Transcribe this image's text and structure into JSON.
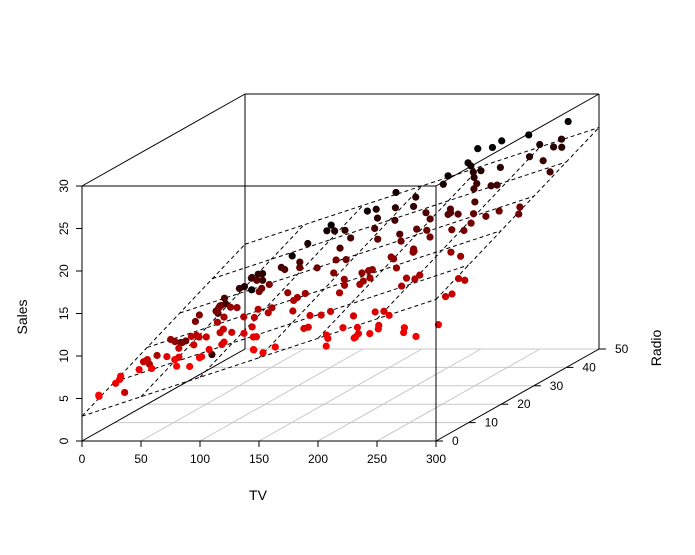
{
  "chart_data": {
    "type": "scatter3d",
    "title": "",
    "xlabel": "TV",
    "ylabel": "Radio",
    "zlabel": "Sales",
    "xlim": [
      0,
      300
    ],
    "ylim": [
      0,
      50
    ],
    "zlim": [
      0,
      30
    ],
    "x_ticks": [
      "0",
      "50",
      "100",
      "150",
      "200",
      "250",
      "300"
    ],
    "y_ticks": [
      "0",
      "10",
      "20",
      "30",
      "40",
      "50"
    ],
    "z_ticks": [
      "0",
      "5",
      "10",
      "15",
      "20",
      "25",
      "30"
    ],
    "grid": "floor",
    "regression_plane": {
      "intercept": 2.92,
      "tv_coef": 0.0458,
      "radio_coef": 0.188,
      "style": "dashed"
    },
    "color_scale": {
      "low_radio": "#ff0000",
      "high_radio": "#000000"
    },
    "points": [
      [
        230.1,
        37.8,
        22.1
      ],
      [
        44.5,
        39.3,
        10.4
      ],
      [
        17.2,
        45.9,
        9.3
      ],
      [
        151.5,
        41.3,
        18.5
      ],
      [
        180.8,
        10.8,
        12.9
      ],
      [
        8.7,
        48.9,
        7.2
      ],
      [
        57.5,
        32.8,
        11.8
      ],
      [
        120.2,
        19.6,
        13.2
      ],
      [
        8.6,
        2.1,
        4.8
      ],
      [
        199.8,
        2.6,
        10.6
      ],
      [
        66.1,
        5.8,
        8.6
      ],
      [
        214.7,
        24.0,
        17.4
      ],
      [
        23.8,
        35.1,
        9.2
      ],
      [
        97.5,
        7.6,
        9.7
      ],
      [
        204.1,
        32.9,
        19.0
      ],
      [
        195.4,
        47.7,
        22.4
      ],
      [
        67.8,
        36.6,
        12.5
      ],
      [
        281.4,
        39.6,
        24.4
      ],
      [
        69.2,
        20.5,
        11.3
      ],
      [
        147.3,
        23.9,
        14.6
      ],
      [
        218.4,
        27.7,
        18.0
      ],
      [
        237.4,
        5.1,
        12.5
      ],
      [
        13.2,
        15.9,
        5.6
      ],
      [
        228.3,
        16.9,
        15.5
      ],
      [
        62.3,
        12.6,
        9.7
      ],
      [
        262.9,
        3.5,
        12.0
      ],
      [
        142.9,
        29.3,
        15.0
      ],
      [
        240.1,
        16.7,
        15.9
      ],
      [
        248.8,
        27.1,
        18.9
      ],
      [
        70.6,
        16.0,
        10.5
      ],
      [
        292.9,
        28.3,
        21.4
      ],
      [
        112.9,
        17.4,
        11.9
      ],
      [
        97.2,
        1.5,
        9.6
      ],
      [
        265.6,
        20.0,
        17.4
      ],
      [
        95.7,
        1.4,
        9.5
      ],
      [
        290.7,
        4.1,
        12.8
      ],
      [
        266.9,
        43.8,
        25.4
      ],
      [
        74.7,
        49.4,
        14.7
      ],
      [
        43.1,
        26.7,
        10.1
      ],
      [
        228.0,
        37.7,
        21.5
      ],
      [
        202.5,
        22.3,
        16.6
      ],
      [
        177.0,
        33.4,
        17.1
      ],
      [
        293.6,
        27.7,
        20.7
      ],
      [
        206.9,
        8.4,
        12.9
      ],
      [
        25.1,
        25.7,
        8.5
      ],
      [
        175.1,
        22.5,
        14.9
      ],
      [
        89.7,
        9.9,
        10.6
      ],
      [
        239.9,
        41.5,
        23.2
      ],
      [
        227.2,
        15.8,
        14.8
      ],
      [
        66.9,
        11.7,
        9.7
      ],
      [
        199.8,
        3.1,
        11.4
      ],
      [
        100.4,
        9.6,
        10.7
      ],
      [
        216.4,
        41.7,
        22.6
      ],
      [
        182.6,
        46.2,
        21.2
      ],
      [
        262.7,
        28.8,
        20.2
      ],
      [
        198.9,
        49.4,
        23.7
      ],
      [
        7.3,
        28.1,
        5.5
      ],
      [
        136.2,
        19.2,
        13.2
      ],
      [
        210.8,
        49.6,
        23.8
      ],
      [
        210.7,
        29.5,
        18.4
      ],
      [
        53.5,
        2.0,
        8.1
      ],
      [
        261.3,
        42.7,
        24.2
      ],
      [
        239.3,
        15.5,
        15.7
      ],
      [
        102.7,
        29.6,
        14.0
      ],
      [
        131.1,
        42.8,
        18.0
      ],
      [
        69.0,
        9.3,
        9.3
      ],
      [
        31.5,
        24.6,
        9.5
      ],
      [
        139.3,
        14.5,
        13.4
      ],
      [
        237.4,
        27.5,
        18.9
      ],
      [
        216.8,
        43.9,
        22.3
      ],
      [
        199.1,
        30.6,
        18.3
      ],
      [
        109.8,
        14.3,
        12.4
      ],
      [
        26.8,
        33.0,
        8.8
      ],
      [
        129.4,
        5.7,
        11.0
      ],
      [
        213.4,
        24.6,
        17.0
      ],
      [
        16.9,
        43.7,
        8.7
      ],
      [
        27.5,
        1.6,
        6.9
      ],
      [
        120.5,
        28.5,
        14.2
      ],
      [
        5.4,
        29.9,
        5.3
      ],
      [
        116.0,
        7.7,
        11.0
      ],
      [
        76.4,
        26.7,
        11.8
      ],
      [
        239.8,
        4.1,
        12.3
      ],
      [
        75.3,
        20.3,
        11.3
      ],
      [
        68.4,
        44.5,
        13.6
      ],
      [
        213.5,
        43.0,
        21.7
      ],
      [
        193.2,
        18.4,
        15.2
      ],
      [
        76.3,
        27.5,
        12.0
      ],
      [
        110.7,
        40.6,
        16.0
      ],
      [
        88.3,
        25.5,
        12.9
      ],
      [
        109.8,
        47.8,
        16.7
      ],
      [
        134.3,
        4.9,
        11.2
      ],
      [
        28.6,
        1.5,
        7.3
      ],
      [
        217.7,
        33.5,
        19.4
      ],
      [
        250.9,
        36.5,
        22.2
      ],
      [
        107.4,
        14.0,
        11.5
      ],
      [
        163.3,
        31.6,
        16.9
      ],
      [
        197.6,
        3.5,
        11.7
      ],
      [
        184.9,
        21.0,
        15.5
      ],
      [
        289.7,
        42.3,
        25.4
      ],
      [
        135.2,
        41.7,
        17.2
      ],
      [
        222.4,
        4.3,
        11.7
      ],
      [
        296.4,
        36.3,
        23.8
      ],
      [
        280.2,
        10.1,
        14.8
      ],
      [
        187.9,
        17.2,
        14.7
      ],
      [
        238.2,
        34.3,
        20.7
      ],
      [
        137.9,
        46.4,
        19.2
      ],
      [
        25.0,
        11.0,
        7.2
      ],
      [
        90.4,
        0.3,
        8.7
      ],
      [
        13.1,
        0.4,
        5.3
      ],
      [
        255.4,
        26.9,
        19.8
      ],
      [
        225.8,
        8.2,
        13.4
      ],
      [
        241.7,
        38.0,
        21.8
      ],
      [
        175.7,
        15.4,
        14.1
      ],
      [
        209.6,
        20.6,
        15.9
      ],
      [
        78.2,
        46.8,
        14.6
      ],
      [
        75.1,
        35.0,
        12.6
      ],
      [
        139.2,
        14.3,
        12.2
      ],
      [
        76.4,
        0.8,
        9.4
      ],
      [
        125.7,
        36.9,
        15.9
      ],
      [
        19.4,
        16.0,
        6.6
      ],
      [
        141.3,
        26.8,
        15.5
      ],
      [
        18.8,
        21.7,
        7.0
      ],
      [
        224.0,
        2.4,
        11.6
      ],
      [
        123.1,
        34.6,
        15.2
      ],
      [
        229.5,
        32.3,
        19.7
      ],
      [
        87.2,
        11.8,
        10.6
      ],
      [
        7.8,
        38.9,
        6.6
      ],
      [
        80.2,
        0.0,
        8.8
      ],
      [
        220.3,
        49.0,
        24.7
      ],
      [
        59.6,
        12.0,
        9.7
      ],
      [
        0.7,
        39.6,
        1.6
      ],
      [
        265.2,
        2.9,
        12.7
      ],
      [
        8.4,
        27.2,
        5.7
      ],
      [
        219.8,
        33.5,
        19.6
      ],
      [
        36.9,
        38.6,
        10.8
      ],
      [
        48.3,
        47.0,
        11.6
      ],
      [
        25.6,
        39.0,
        9.5
      ],
      [
        273.7,
        28.9,
        20.8
      ],
      [
        43.0,
        25.9,
        9.6
      ],
      [
        184.9,
        43.9,
        20.7
      ],
      [
        73.4,
        17.0,
        10.9
      ],
      [
        193.7,
        35.4,
        19.2
      ],
      [
        220.5,
        33.2,
        20.1
      ],
      [
        104.6,
        5.7,
        10.4
      ],
      [
        96.2,
        14.8,
        11.4
      ],
      [
        140.3,
        1.9,
        10.3
      ],
      [
        240.1,
        7.3,
        13.2
      ],
      [
        243.2,
        49.0,
        25.4
      ],
      [
        38.0,
        40.3,
        10.9
      ],
      [
        44.7,
        25.8,
        10.1
      ],
      [
        280.7,
        13.9,
        16.1
      ],
      [
        121.0,
        8.4,
        11.6
      ],
      [
        197.6,
        23.3,
        16.6
      ],
      [
        171.3,
        39.7,
        19.0
      ],
      [
        187.8,
        21.1,
        15.6
      ],
      [
        4.1,
        11.6,
        3.2
      ],
      [
        93.9,
        43.5,
        15.3
      ],
      [
        149.8,
        1.3,
        10.1
      ],
      [
        11.7,
        36.9,
        7.3
      ],
      [
        131.7,
        18.4,
        12.9
      ],
      [
        172.5,
        18.1,
        14.4
      ],
      [
        85.7,
        35.8,
        13.3
      ],
      [
        188.4,
        18.1,
        14.9
      ],
      [
        163.5,
        36.8,
        18.0
      ],
      [
        117.2,
        14.7,
        11.9
      ],
      [
        234.5,
        3.4,
        11.9
      ],
      [
        17.9,
        37.6,
        8.0
      ],
      [
        206.8,
        5.2,
        12.2
      ],
      [
        215.4,
        23.6,
        17.1
      ],
      [
        284.3,
        10.6,
        15.0
      ],
      [
        50.0,
        11.6,
        8.4
      ],
      [
        164.5,
        20.9,
        14.5
      ],
      [
        19.6,
        20.1,
        7.6
      ],
      [
        168.4,
        7.1,
        11.7
      ],
      [
        222.4,
        3.4,
        11.5
      ],
      [
        276.9,
        48.9,
        27.0
      ],
      [
        248.4,
        30.2,
        20.2
      ],
      [
        170.2,
        7.8,
        11.7
      ],
      [
        276.7,
        2.3,
        11.8
      ],
      [
        165.6,
        10.0,
        12.6
      ],
      [
        156.6,
        2.6,
        10.5
      ],
      [
        218.5,
        5.4,
        12.2
      ],
      [
        56.2,
        5.7,
        8.7
      ],
      [
        287.6,
        43.0,
        26.2
      ],
      [
        253.8,
        21.3,
        17.6
      ],
      [
        205.0,
        45.1,
        22.6
      ],
      [
        139.5,
        2.1,
        10.3
      ],
      [
        191.1,
        28.7,
        17.3
      ],
      [
        286.0,
        13.9,
        15.9
      ],
      [
        18.7,
        12.1,
        6.7
      ],
      [
        39.5,
        41.1,
        10.8
      ],
      [
        75.5,
        10.8,
        9.9
      ],
      [
        17.2,
        4.1,
        5.9
      ],
      [
        166.8,
        42.0,
        19.6
      ],
      [
        149.7,
        35.6,
        17.3
      ],
      [
        38.2,
        3.7,
        7.6
      ],
      [
        94.2,
        4.9,
        9.7
      ],
      [
        177.0,
        9.3,
        12.8
      ],
      [
        283.6,
        42.0,
        25.5
      ],
      [
        232.1,
        8.6,
        13.4
      ]
    ]
  }
}
